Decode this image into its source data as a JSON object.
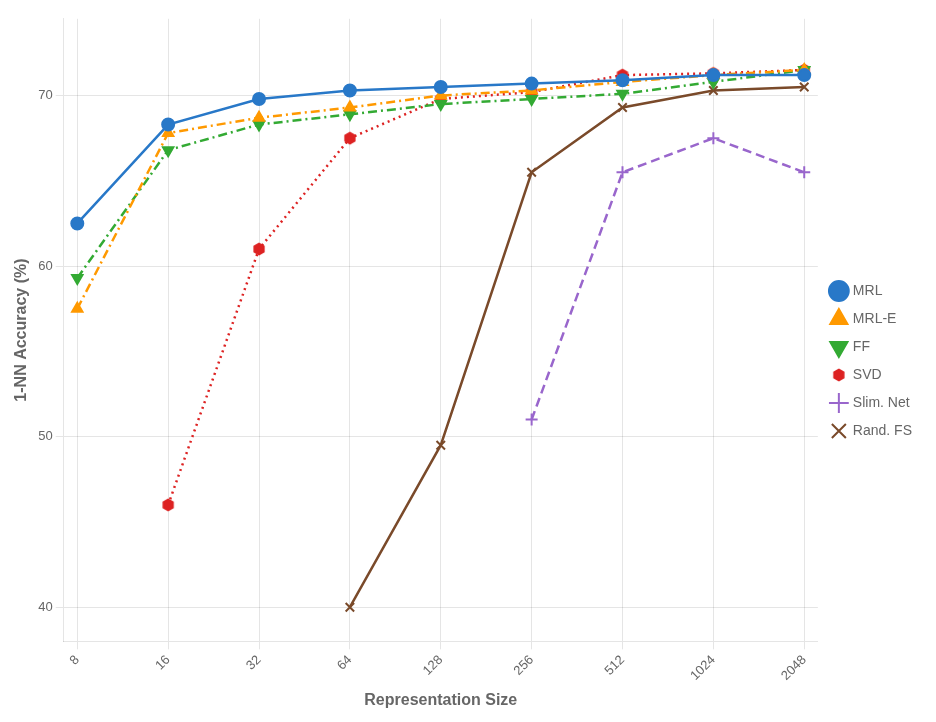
{
  "chart_data": {
    "type": "line",
    "x": [
      8,
      16,
      32,
      64,
      128,
      256,
      512,
      1024,
      2048
    ],
    "series": [
      {
        "name": "MRL",
        "color": "#2878c8",
        "line_style": "solid",
        "marker": "circle",
        "values": [
          62.5,
          68.3,
          69.8,
          70.3,
          70.5,
          70.7,
          70.9,
          71.2,
          71.2
        ]
      },
      {
        "name": "MRL-E",
        "color": "#ff9900",
        "line_style": "dashdot",
        "marker": "triangle-up",
        "values": [
          57.5,
          67.8,
          68.7,
          69.3,
          70.0,
          70.3,
          70.8,
          71.2,
          71.5
        ]
      },
      {
        "name": "FF",
        "color": "#33aa33",
        "line_style": "dashdot",
        "marker": "triangle-down",
        "values": [
          59.3,
          66.8,
          68.3,
          68.9,
          69.5,
          69.8,
          70.1,
          70.8,
          71.5
        ]
      },
      {
        "name": "SVD",
        "color": "#dd2222",
        "line_style": "dotted",
        "marker": "hexagon",
        "values": [
          null,
          46.0,
          61.0,
          67.5,
          69.8,
          70.2,
          71.2,
          71.3,
          71.5
        ]
      },
      {
        "name": "Slim. Net",
        "color": "#9966cc",
        "line_style": "dashed",
        "marker": "plus",
        "values": [
          null,
          null,
          null,
          null,
          null,
          51.0,
          65.5,
          67.5,
          65.5
        ]
      },
      {
        "name": "Rand. FS",
        "color": "#7a4a2a",
        "line_style": "solid",
        "marker": "x",
        "values": [
          null,
          null,
          null,
          40.0,
          49.5,
          65.5,
          69.3,
          70.3,
          70.5
        ]
      }
    ],
    "x_label": "Representation Size",
    "y_label": "1-NN Accuracy (%)",
    "log": "x",
    "xlim": [
      7.21,
      2272.4
    ],
    "xticks": [
      8,
      16,
      32,
      64,
      128,
      256,
      512,
      1024,
      2048
    ],
    "ylim": [
      38,
      74.5
    ],
    "yticks": [
      40,
      50,
      60,
      70
    ],
    "grid": true,
    "legend": "right"
  }
}
